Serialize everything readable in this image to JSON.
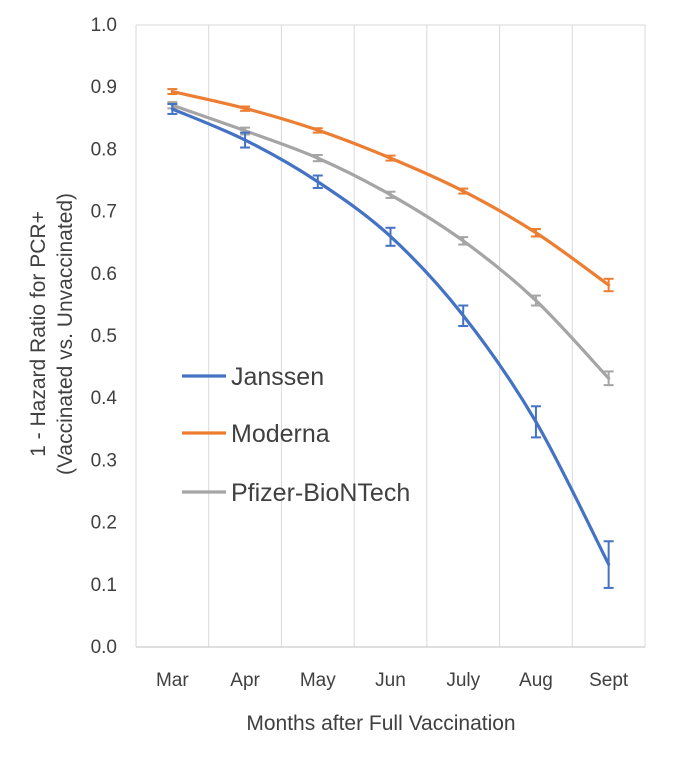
{
  "chart_data": {
    "type": "line",
    "title": "",
    "xlabel": "Months after Full Vaccination",
    "ylabel_lines": [
      "1 - Hazard Ratio for PCR+",
      "(Vaccinated vs. Unvaccinated)"
    ],
    "categories": [
      "Mar",
      "Apr",
      "May",
      "Jun",
      "July",
      "Aug",
      "Sept"
    ],
    "ylim": [
      0.0,
      1.0
    ],
    "yticks": [
      "0.0",
      "0.1",
      "0.2",
      "0.3",
      "0.4",
      "0.5",
      "0.6",
      "0.7",
      "0.8",
      "0.9",
      "1.0"
    ],
    "grid": "vertical",
    "legend_position": "center-left",
    "series": [
      {
        "name": "Janssen",
        "color": "#4472c4",
        "values": [
          0.865,
          0.815,
          0.748,
          0.66,
          0.533,
          0.362,
          0.133
        ],
        "err_low": [
          0.857,
          0.803,
          0.738,
          0.645,
          0.516,
          0.337,
          0.095
        ],
        "err_high": [
          0.873,
          0.827,
          0.758,
          0.674,
          0.549,
          0.387,
          0.17
        ]
      },
      {
        "name": "Moderna",
        "color": "#ed7d31",
        "values": [
          0.893,
          0.866,
          0.831,
          0.786,
          0.733,
          0.666,
          0.582
        ],
        "err_low": [
          0.889,
          0.862,
          0.827,
          0.782,
          0.729,
          0.66,
          0.572
        ],
        "err_high": [
          0.897,
          0.869,
          0.834,
          0.79,
          0.737,
          0.672,
          0.592
        ]
      },
      {
        "name": "Pfizer-BioNTech",
        "color": "#a5a5a5",
        "values": [
          0.871,
          0.83,
          0.786,
          0.727,
          0.653,
          0.557,
          0.432
        ],
        "err_low": [
          0.866,
          0.824,
          0.781,
          0.722,
          0.647,
          0.549,
          0.421
        ],
        "err_high": [
          0.876,
          0.835,
          0.791,
          0.732,
          0.659,
          0.565,
          0.443
        ]
      }
    ]
  }
}
